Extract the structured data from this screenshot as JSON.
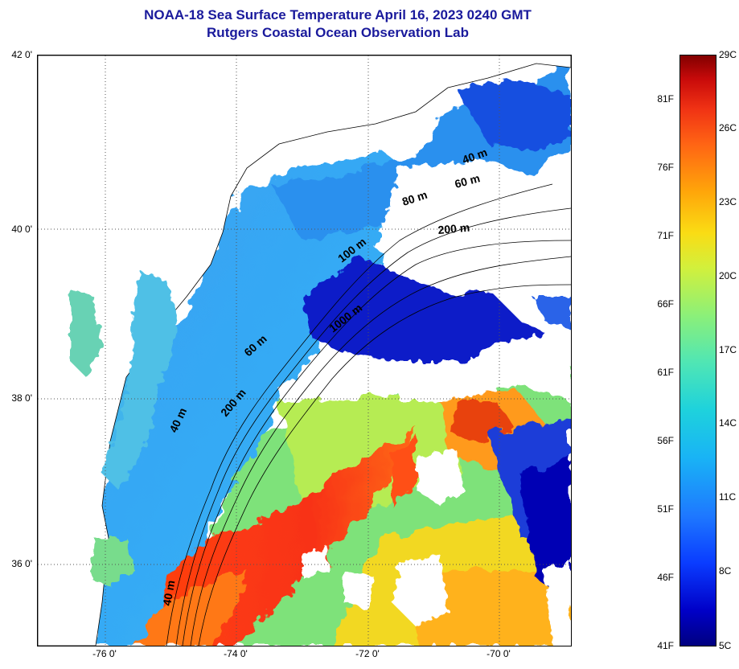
{
  "title": {
    "line1": "NOAA-18 Sea Surface Temperature April 16, 2023 0240 GMT",
    "line2": "Rutgers Coastal Ocean Observation Lab"
  },
  "lat_ticks": [
    "42 0'",
    "40 0'",
    "38 0'",
    "36 0'"
  ],
  "lon_ticks": [
    "-76 0'",
    "-74 0'",
    "-72 0'",
    "-70 0'"
  ],
  "isobaths": [
    "40 m",
    "60 m",
    "80 m",
    "200 m",
    "100 m",
    "1000 m",
    "60 m",
    "40 m",
    "200 m",
    "40 m"
  ],
  "colorbar": {
    "fahrenheit": [
      "81F",
      "76F",
      "71F",
      "66F",
      "61F",
      "56F",
      "51F",
      "46F",
      "41F"
    ],
    "celsius": [
      "29C",
      "26C",
      "23C",
      "20C",
      "17C",
      "14C",
      "11C",
      "8C",
      "5C"
    ]
  },
  "colors": {
    "title": "#1a1a9c",
    "cold": "#000080",
    "warm": "#820000"
  }
}
